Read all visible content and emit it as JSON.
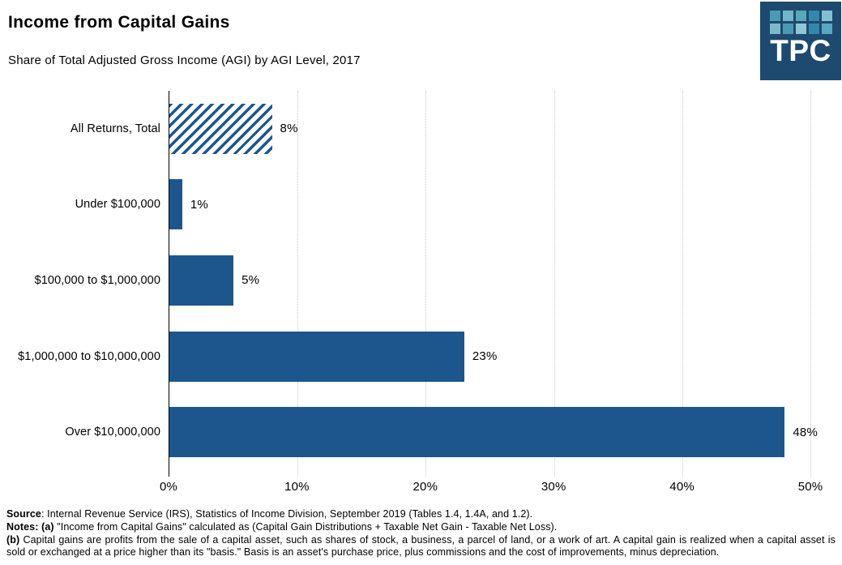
{
  "header": {
    "title": "Income from Capital Gains",
    "subtitle": "Share of Total Adjusted Gross Income (AGI) by AGI Level, 2017"
  },
  "logo": {
    "text": "TPC",
    "background": "#1d4a6e",
    "tile_colors": [
      "#4a9ab6",
      "#71b5c9",
      "#57a8b8",
      "#3387ab",
      "#82bfd2",
      "#7db9cc",
      "#4a9ab6",
      "#8fc6d4",
      "#3387ab",
      "#57a8c2"
    ]
  },
  "colors": {
    "bar_blue": "#1d568c",
    "gridline": "#c9c9c9",
    "axis": "#000000"
  },
  "chart_data": {
    "type": "bar",
    "orientation": "horizontal",
    "title": "Income from Capital Gains",
    "subtitle": "Share of Total Adjusted Gross Income (AGI) by AGI Level, 2017",
    "categories": [
      "All Returns, Total",
      "Under $100,000",
      "$100,000 to $1,000,000",
      "$1,000,000 to $10,000,000",
      "Over $10,000,000"
    ],
    "values": [
      8,
      1,
      5,
      23,
      48
    ],
    "value_labels": [
      "8%",
      "1%",
      "5%",
      "23%",
      "48%"
    ],
    "bar_styles": [
      "hatched",
      "solid",
      "solid",
      "solid",
      "solid"
    ],
    "xlabel": "",
    "ylabel": "",
    "xlim": [
      0,
      50
    ],
    "x_tick_labels": [
      "0%",
      "10%",
      "20%",
      "30%",
      "40%",
      "50%"
    ],
    "grid": "vertical-dotted",
    "legend": "none"
  },
  "notes": {
    "source_label": "Source",
    "source_text": ": Internal Revenue Service (IRS), Statistics of Income Division, September 2019 (Tables 1.4, 1.4A, and 1.2).",
    "notes_label": "Notes: (a)",
    "notes_text": " \"Income from Capital Gains\" calculated as (Capital Gain Distributions + Taxable Net Gain - Taxable Net Loss).",
    "b_label": "(b)",
    "b_text": " Capital gains are profits from the sale of a capital asset, such as shares of stock, a business, a parcel of land, or a work of art. A capital gain is realized when a capital asset is sold or exchanged at a price higher than its \"basis.\" Basis is an asset's purchase price, plus commissions and the cost of improvements, minus depreciation."
  }
}
